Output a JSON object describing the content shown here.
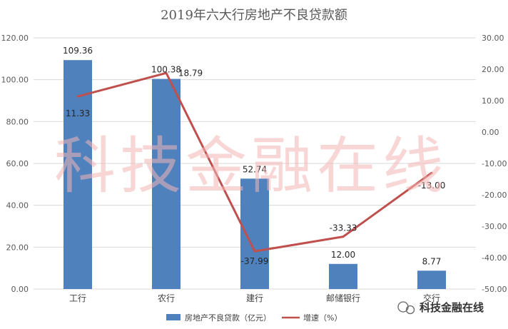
{
  "chart_data": {
    "type": "bar",
    "title": "2019年六大行房地产不良贷款额",
    "categories": [
      "工行",
      "农行",
      "建行",
      "邮储银行",
      "交行"
    ],
    "series": [
      {
        "name": "房地产不良贷款（亿元）",
        "type": "bar",
        "axis": "left",
        "values": [
          109.36,
          100.38,
          52.74,
          12.0,
          8.77
        ],
        "labels": [
          "109.36",
          "100.38",
          "52.74",
          "12.00",
          "8.77"
        ]
      },
      {
        "name": "增速（%）",
        "type": "line",
        "axis": "right",
        "values": [
          11.33,
          18.79,
          -37.99,
          -33.33,
          -13.0
        ],
        "labels": [
          "11.33",
          "18.79",
          "-37.99",
          "-33.33",
          "-13.00"
        ]
      }
    ],
    "y_left": {
      "ylim": [
        0,
        120
      ],
      "ticks": [
        "0.00",
        "20.00",
        "40.00",
        "60.00",
        "80.00",
        "100.00",
        "120.00"
      ]
    },
    "y_right": {
      "ylim": [
        -50,
        30
      ],
      "ticks": [
        "-50.00",
        "-40.00",
        "-30.00",
        "-20.00",
        "-10.00",
        "0.00",
        "10.00",
        "20.00",
        "30.00"
      ]
    },
    "grid": true,
    "legend": "bottom",
    "colors": {
      "bar": "#4f81bd",
      "line": "#c0504d",
      "grid": "#d9d9d9"
    }
  },
  "watermark": "科技金融在线",
  "brand": "科技金融在线"
}
